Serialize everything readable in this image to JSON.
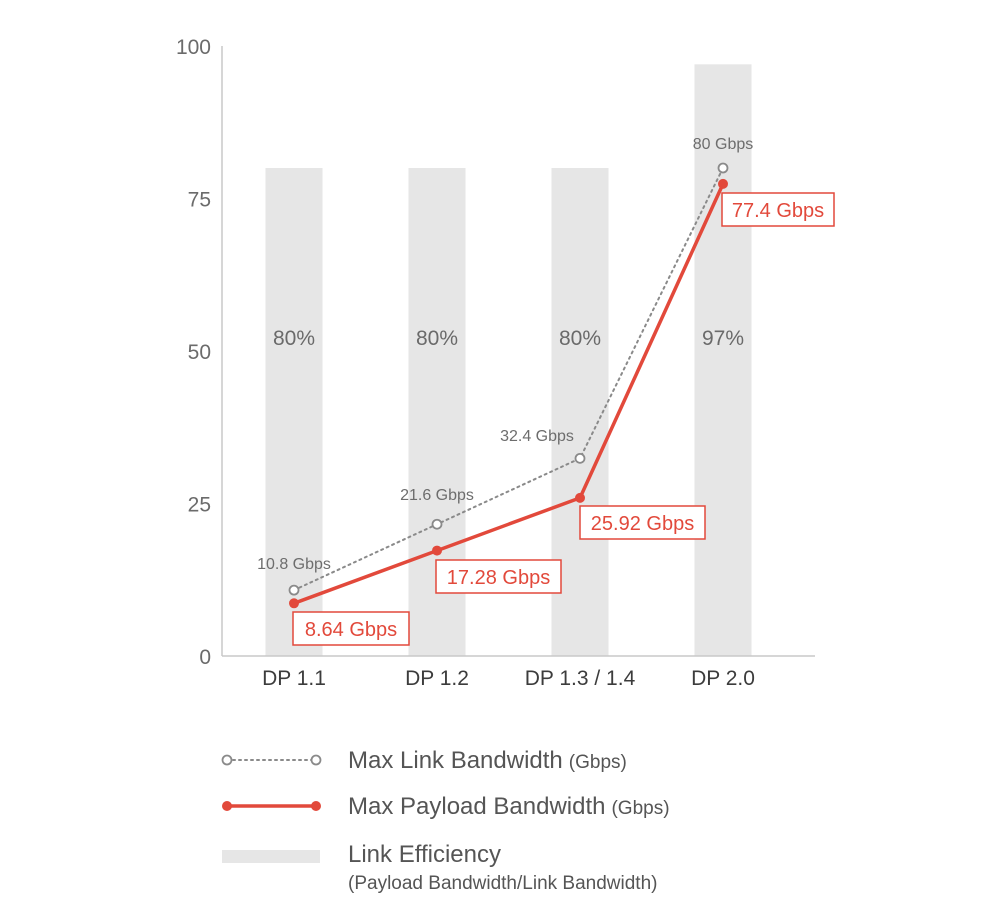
{
  "chart_data": {
    "type": "bar+line",
    "categories": [
      "DP 1.1",
      "DP 1.2",
      "DP 1.3 / 1.4",
      "DP 2.0"
    ],
    "highlight_category": "DP 2.0",
    "y_ticks": [
      "0",
      "25",
      "50",
      "75",
      "100"
    ],
    "ylim": [
      0,
      100
    ],
    "series": [
      {
        "name": "Link Efficiency",
        "kind": "bar",
        "values": [
          80,
          80,
          80,
          97
        ],
        "labels": [
          "80%",
          "80%",
          "80%",
          "97%"
        ],
        "color": "#e6e6e6"
      },
      {
        "name": "Max Link Bandwidth",
        "kind": "line-dotted",
        "values": [
          10.8,
          21.6,
          32.4,
          80
        ],
        "labels": [
          "10.8 Gbps",
          "21.6 Gbps",
          "32.4 Gbps",
          "80 Gbps"
        ],
        "color": "#8a8a8a"
      },
      {
        "name": "Max Payload Bandwidth",
        "kind": "line",
        "values": [
          8.64,
          17.28,
          25.92,
          77.4
        ],
        "labels": [
          "8.64 Gbps",
          "17.28 Gbps",
          "25.92 Gbps",
          "77.4 Gbps"
        ],
        "color": "#e2493b"
      }
    ],
    "legend": [
      {
        "label": "Max Link Bandwidth",
        "unit": "(Gbps)",
        "sub": ""
      },
      {
        "label": "Max Payload Bandwidth",
        "unit": "(Gbps)",
        "sub": ""
      },
      {
        "label": "Link Efficiency",
        "unit": "",
        "sub": "(Payload Bandwidth/Link Bandwidth)"
      }
    ],
    "legend_position": "bottom",
    "grid": false,
    "colors": {
      "axis": "#c8c8c8",
      "highlight_text": "#e2493b",
      "category_text": "#3c3c3c"
    }
  }
}
